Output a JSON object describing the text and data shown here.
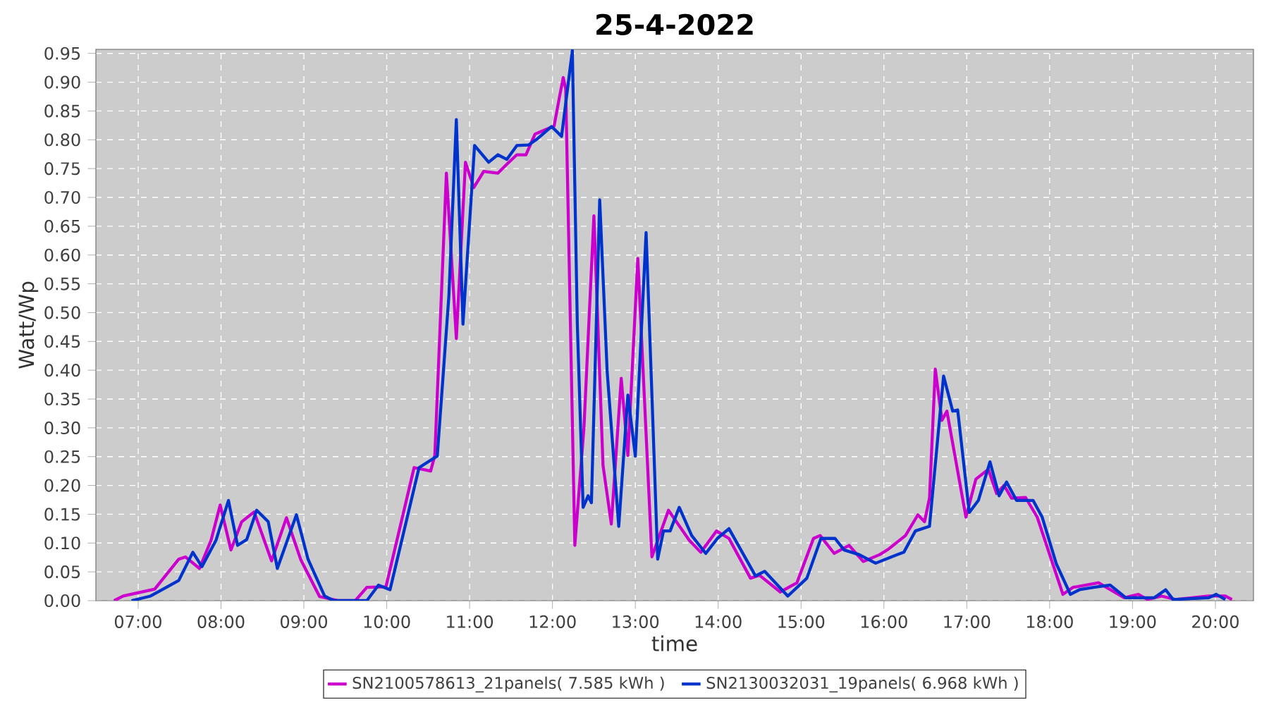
{
  "chart_data": {
    "type": "line",
    "title": "25-4-2022",
    "xlabel": "time",
    "ylabel": "Watt/Wp",
    "xlim": [
      6.49,
      20.46
    ],
    "ylim": [
      0,
      0.957
    ],
    "xticks": [
      {
        "value": 7,
        "label": "07:00"
      },
      {
        "value": 8,
        "label": "08:00"
      },
      {
        "value": 9,
        "label": "09:00"
      },
      {
        "value": 10,
        "label": "10:00"
      },
      {
        "value": 11,
        "label": "11:00"
      },
      {
        "value": 12,
        "label": "12:00"
      },
      {
        "value": 13,
        "label": "13:00"
      },
      {
        "value": 14,
        "label": "14:00"
      },
      {
        "value": 15,
        "label": "15:00"
      },
      {
        "value": 16,
        "label": "16:00"
      },
      {
        "value": 17,
        "label": "17:00"
      },
      {
        "value": 18,
        "label": "18:00"
      },
      {
        "value": 19,
        "label": "19:00"
      },
      {
        "value": 20,
        "label": "20:00"
      }
    ],
    "yticks": [
      {
        "value": 0,
        "label": "0.00"
      },
      {
        "value": 0.05,
        "label": "0.05"
      },
      {
        "value": 0.1,
        "label": "0.10"
      },
      {
        "value": 0.15,
        "label": "0.15"
      },
      {
        "value": 0.2,
        "label": "0.20"
      },
      {
        "value": 0.25,
        "label": "0.25"
      },
      {
        "value": 0.3,
        "label": "0.30"
      },
      {
        "value": 0.35,
        "label": "0.35"
      },
      {
        "value": 0.4,
        "label": "0.40"
      },
      {
        "value": 0.45,
        "label": "0.45"
      },
      {
        "value": 0.5,
        "label": "0.50"
      },
      {
        "value": 0.55,
        "label": "0.55"
      },
      {
        "value": 0.6,
        "label": "0.60"
      },
      {
        "value": 0.65,
        "label": "0.65"
      },
      {
        "value": 0.7,
        "label": "0.70"
      },
      {
        "value": 0.75,
        "label": "0.75"
      },
      {
        "value": 0.8,
        "label": "0.80"
      },
      {
        "value": 0.85,
        "label": "0.85"
      },
      {
        "value": 0.9,
        "label": "0.90"
      },
      {
        "value": 0.95,
        "label": "0.95"
      }
    ],
    "grid": true,
    "legend": "bottom",
    "series": [
      {
        "name": "SN2100578613_21panels( 7.585 kWh )",
        "color": "#cc00cc",
        "x": [
          6.71,
          6.82,
          7.2,
          7.49,
          7.57,
          7.74,
          7.88,
          7.99,
          8.12,
          8.25,
          8.4,
          8.61,
          8.79,
          8.96,
          9.19,
          9.42,
          9.62,
          9.76,
          9.99,
          10.33,
          10.53,
          10.58,
          10.72,
          10.84,
          10.95,
          11.05,
          11.17,
          11.34,
          11.46,
          11.57,
          11.68,
          11.79,
          12.02,
          12.08,
          12.13,
          12.16,
          12.27,
          12.38,
          12.5,
          12.61,
          12.71,
          12.83,
          12.91,
          13.03,
          13.2,
          13.4,
          13.65,
          13.79,
          13.98,
          14.13,
          14.39,
          14.5,
          14.75,
          14.95,
          15.15,
          15.23,
          15.4,
          15.58,
          15.75,
          15.95,
          16.06,
          16.26,
          16.41,
          16.49,
          16.55,
          16.62,
          16.7,
          16.76,
          16.99,
          17.11,
          17.26,
          17.36,
          17.45,
          17.54,
          17.71,
          17.85,
          18.16,
          18.28,
          18.59,
          18.9,
          19.07,
          19.18,
          19.35,
          19.52,
          19.92,
          20.12,
          20.2
        ],
        "values": [
          0,
          0.008,
          0.02,
          0.072,
          0.076,
          0.056,
          0.105,
          0.166,
          0.088,
          0.137,
          0.154,
          0.069,
          0.144,
          0.072,
          0.007,
          0,
          0,
          0.023,
          0.024,
          0.231,
          0.225,
          0.252,
          0.742,
          0.455,
          0.761,
          0.717,
          0.745,
          0.742,
          0.759,
          0.774,
          0.774,
          0.81,
          0.824,
          0.871,
          0.908,
          0.888,
          0.096,
          0.3,
          0.668,
          0.235,
          0.133,
          0.386,
          0.252,
          0.594,
          0.076,
          0.157,
          0.105,
          0.084,
          0.121,
          0.108,
          0.039,
          0.044,
          0.015,
          0.031,
          0.108,
          0.113,
          0.082,
          0.096,
          0.068,
          0.08,
          0.09,
          0.113,
          0.149,
          0.137,
          0.178,
          0.402,
          0.313,
          0.329,
          0.145,
          0.211,
          0.228,
          0.186,
          0.2,
          0.178,
          0.179,
          0.145,
          0.011,
          0.023,
          0.031,
          0.005,
          0.011,
          0.002,
          0.008,
          0.002,
          0.008,
          0.008,
          0.002
        ]
      },
      {
        "name": "SN2130032031_19panels( 6.968 kWh )",
        "color": "#0033cc",
        "x": [
          6.92,
          7.15,
          7.29,
          7.49,
          7.66,
          7.77,
          7.94,
          8.09,
          8.2,
          8.31,
          8.43,
          8.57,
          8.68,
          8.91,
          9.05,
          9.25,
          9.36,
          9.76,
          9.9,
          10.04,
          10.39,
          10.61,
          10.75,
          10.84,
          10.92,
          11.06,
          11.23,
          11.34,
          11.45,
          11.57,
          11.71,
          11.82,
          11.99,
          12.11,
          12.24,
          12.3,
          12.37,
          12.43,
          12.47,
          12.57,
          12.66,
          12.8,
          12.91,
          13.0,
          13.13,
          13.21,
          13.27,
          13.34,
          13.42,
          13.53,
          13.68,
          13.85,
          13.99,
          14.13,
          14.45,
          14.56,
          14.84,
          15.07,
          15.24,
          15.41,
          15.52,
          15.7,
          15.9,
          16.09,
          16.24,
          16.38,
          16.55,
          16.72,
          16.83,
          16.89,
          17.03,
          17.14,
          17.28,
          17.39,
          17.48,
          17.6,
          17.8,
          17.91,
          18.08,
          18.25,
          18.36,
          18.53,
          18.73,
          18.92,
          19.26,
          19.4,
          19.49,
          19.92,
          20.01,
          20.12
        ],
        "values": [
          0,
          0.008,
          0.019,
          0.035,
          0.084,
          0.059,
          0.105,
          0.174,
          0.096,
          0.106,
          0.157,
          0.137,
          0.056,
          0.149,
          0.072,
          0.008,
          0,
          0,
          0.027,
          0.019,
          0.231,
          0.251,
          0.529,
          0.835,
          0.48,
          0.79,
          0.761,
          0.774,
          0.766,
          0.79,
          0.791,
          0.802,
          0.823,
          0.806,
          0.955,
          0.48,
          0.162,
          0.182,
          0.17,
          0.696,
          0.398,
          0.129,
          0.357,
          0.251,
          0.639,
          0.317,
          0.072,
          0.121,
          0.121,
          0.162,
          0.113,
          0.082,
          0.108,
          0.125,
          0.043,
          0.051,
          0.008,
          0.039,
          0.108,
          0.108,
          0.088,
          0.08,
          0.065,
          0.076,
          0.084,
          0.121,
          0.129,
          0.39,
          0.329,
          0.331,
          0.153,
          0.174,
          0.241,
          0.182,
          0.206,
          0.174,
          0.174,
          0.145,
          0.064,
          0.011,
          0.019,
          0.023,
          0.027,
          0.005,
          0.005,
          0.019,
          0.002,
          0.005,
          0.011,
          0.002
        ]
      }
    ]
  }
}
